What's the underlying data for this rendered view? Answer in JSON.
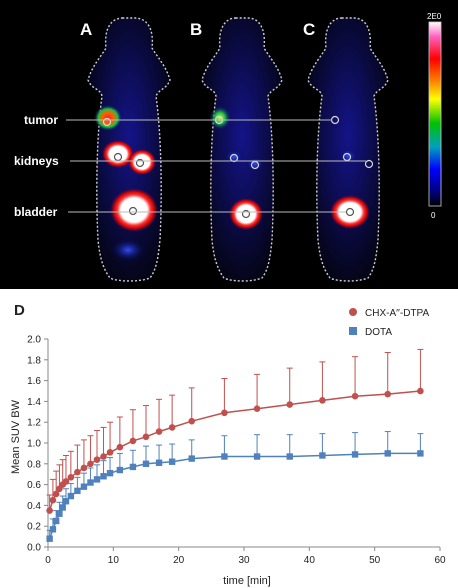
{
  "pet_panel": {
    "panel_labels": [
      "A",
      "B",
      "C"
    ],
    "organ_labels": {
      "tumor": "tumor",
      "kidneys": "kidneys",
      "bladder": "bladder"
    },
    "colorbar": {
      "max_label": "2E0",
      "min_label": "0"
    },
    "colors": {
      "background": "#000000",
      "outline": "#cfcfcf",
      "roi_marker": "#d8d8d8"
    }
  },
  "chart_panel_label": "D",
  "chart_data": {
    "type": "line",
    "xlabel": "time [min]",
    "ylabel": "Mean SUV BW",
    "xlim": [
      0,
      60
    ],
    "ylim": [
      0,
      2.0
    ],
    "xticks": [
      "0",
      "10",
      "20",
      "30",
      "40",
      "50",
      "60"
    ],
    "yticks": [
      "0.0",
      "0.2",
      "0.4",
      "0.6",
      "0.8",
      "1.0",
      "1.2",
      "1.4",
      "1.6",
      "1.8",
      "2.0"
    ],
    "grid": false,
    "legend_position": "top-right",
    "series": [
      {
        "name": "CHX-A′′-DTPA",
        "color": "#c0504d",
        "marker": "circle",
        "x": [
          0.25,
          0.75,
          1.25,
          1.75,
          2.25,
          2.75,
          3.5,
          4.5,
          5.5,
          6.5,
          7.5,
          8.5,
          9.5,
          11,
          13,
          15,
          17,
          19,
          22,
          27,
          32,
          37,
          42,
          47,
          52,
          57
        ],
        "y": [
          0.35,
          0.45,
          0.51,
          0.56,
          0.6,
          0.63,
          0.67,
          0.72,
          0.76,
          0.8,
          0.84,
          0.87,
          0.91,
          0.96,
          1.02,
          1.06,
          1.11,
          1.15,
          1.21,
          1.29,
          1.33,
          1.37,
          1.41,
          1.45,
          1.47,
          1.5
        ],
        "err": [
          0.15,
          0.2,
          0.22,
          0.23,
          0.24,
          0.25,
          0.25,
          0.26,
          0.27,
          0.27,
          0.28,
          0.28,
          0.29,
          0.29,
          0.3,
          0.3,
          0.31,
          0.31,
          0.32,
          0.33,
          0.33,
          0.35,
          0.37,
          0.38,
          0.4,
          0.4
        ]
      },
      {
        "name": "DOTA",
        "color": "#4f81bd",
        "marker": "square",
        "x": [
          0.25,
          0.75,
          1.25,
          1.75,
          2.25,
          2.75,
          3.5,
          4.5,
          5.5,
          6.5,
          7.5,
          8.5,
          9.5,
          11,
          13,
          15,
          17,
          19,
          22,
          27,
          32,
          37,
          42,
          47,
          52,
          57
        ],
        "y": [
          0.08,
          0.17,
          0.25,
          0.32,
          0.38,
          0.44,
          0.49,
          0.54,
          0.58,
          0.62,
          0.65,
          0.68,
          0.71,
          0.74,
          0.77,
          0.8,
          0.81,
          0.82,
          0.85,
          0.87,
          0.87,
          0.87,
          0.88,
          0.89,
          0.9,
          0.9
        ],
        "err": [
          0.08,
          0.1,
          0.1,
          0.11,
          0.11,
          0.12,
          0.12,
          0.13,
          0.13,
          0.14,
          0.14,
          0.15,
          0.15,
          0.16,
          0.16,
          0.17,
          0.17,
          0.17,
          0.18,
          0.2,
          0.21,
          0.21,
          0.21,
          0.21,
          0.21,
          0.19
        ]
      }
    ]
  }
}
